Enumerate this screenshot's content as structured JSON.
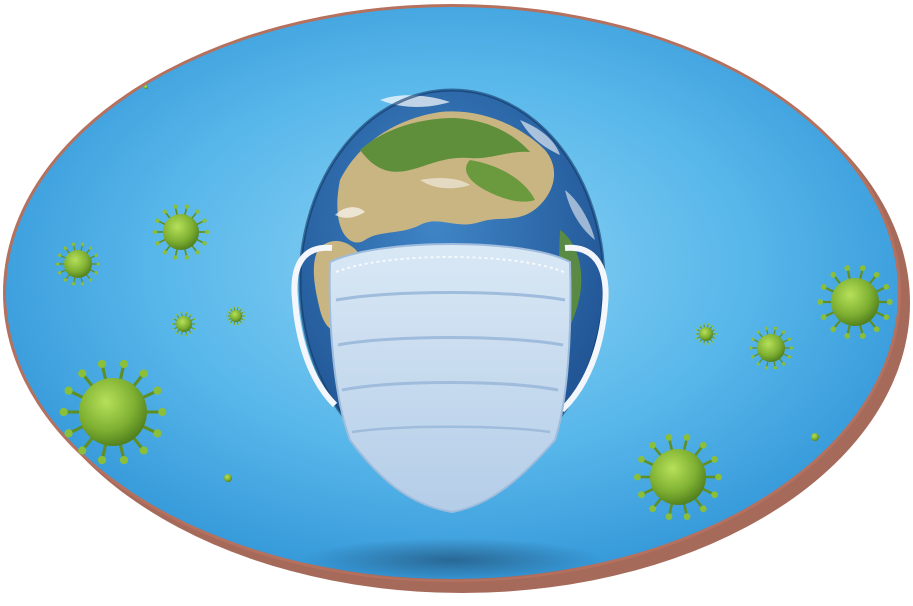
{
  "image": {
    "subject": "earth-globe-wearing-surgical-mask",
    "elements": [
      "oval-frame",
      "sky-background",
      "globe",
      "surgical-mask",
      "virus-particles",
      "drop-shadow"
    ],
    "colors": {
      "frame_rim": "#b5705e",
      "frame_shadow": "#9c5a48",
      "sky_light": "#7fcaf0",
      "sky_mid": "#4fb2e6",
      "sky_dark": "#2f93d6",
      "ocean": "#2f6fb3",
      "land_green": "#5f8f3a",
      "land_tan": "#c9b582",
      "mask_blue": "#c7dcef",
      "mask_shadow": "#9fbcdc",
      "virus_green": "#8bbf3a",
      "virus_dark": "#4f7d1d"
    }
  }
}
